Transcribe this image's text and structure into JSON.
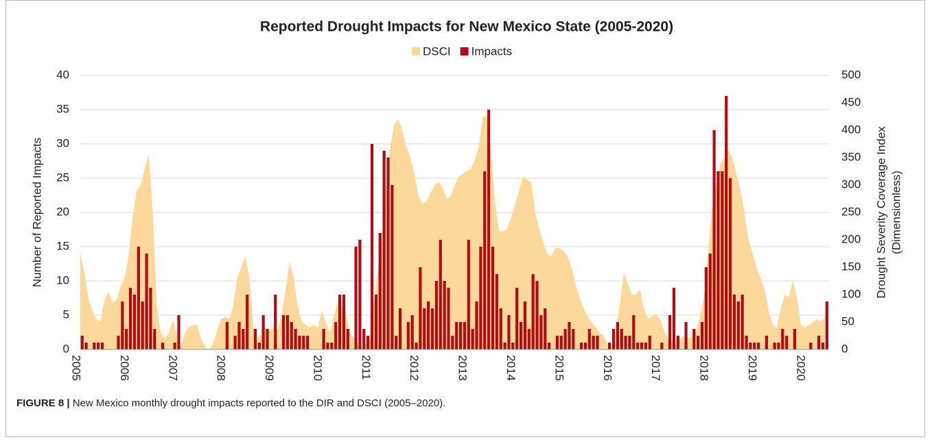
{
  "chart_data": {
    "type": "bar",
    "title": "Reported Drought Impacts for New Mexico State (2005-2020)",
    "y_label": "Number of Reported Impacts",
    "y2_label": [
      "Drought Severity Coverage Index",
      "(Dimensionless)"
    ],
    "legend": "top",
    "grid": true,
    "ylim": [
      0,
      40
    ],
    "yticks": [
      0,
      5,
      10,
      15,
      20,
      25,
      30,
      35,
      40
    ],
    "y2lim": [
      0,
      500
    ],
    "y2ticks": [
      0,
      50,
      100,
      150,
      200,
      250,
      300,
      350,
      400,
      450,
      500
    ],
    "categories": [
      "2005",
      null,
      null,
      null,
      null,
      null,
      null,
      null,
      null,
      null,
      null,
      null,
      "2006",
      null,
      null,
      null,
      null,
      null,
      null,
      null,
      null,
      null,
      null,
      null,
      "2007",
      null,
      null,
      null,
      null,
      null,
      null,
      null,
      null,
      null,
      null,
      null,
      "2008",
      null,
      null,
      null,
      null,
      null,
      null,
      null,
      null,
      null,
      null,
      null,
      "2009",
      null,
      null,
      null,
      null,
      null,
      null,
      null,
      null,
      null,
      null,
      null,
      "2010",
      null,
      null,
      null,
      null,
      null,
      null,
      null,
      null,
      null,
      null,
      null,
      "2011",
      null,
      null,
      null,
      null,
      null,
      null,
      null,
      null,
      null,
      null,
      null,
      "2012",
      null,
      null,
      null,
      null,
      null,
      null,
      null,
      null,
      null,
      null,
      null,
      "2013",
      null,
      null,
      null,
      null,
      null,
      null,
      null,
      null,
      null,
      null,
      null,
      "2014",
      null,
      null,
      null,
      null,
      null,
      null,
      null,
      null,
      null,
      null,
      null,
      "2015",
      null,
      null,
      null,
      null,
      null,
      null,
      null,
      null,
      null,
      null,
      null,
      "2016",
      null,
      null,
      null,
      null,
      null,
      null,
      null,
      null,
      null,
      null,
      null,
      "2017",
      null,
      null,
      null,
      null,
      null,
      null,
      null,
      null,
      null,
      null,
      null,
      "2018",
      null,
      null,
      null,
      null,
      null,
      null,
      null,
      null,
      null,
      null,
      null,
      "2019",
      null,
      null,
      null,
      null,
      null,
      null,
      null,
      null,
      null,
      null,
      null,
      "2020",
      null,
      null,
      null,
      null,
      null
    ],
    "series": [
      {
        "name": "DSCI",
        "type": "area",
        "axis": "y2",
        "color": "#fdd89a",
        "values": [
          175,
          140,
          95,
          70,
          55,
          50,
          90,
          105,
          85,
          90,
          115,
          130,
          170,
          240,
          290,
          300,
          330,
          355,
          250,
          80,
          30,
          20,
          30,
          55,
          25,
          5,
          30,
          40,
          45,
          45,
          20,
          5,
          0,
          10,
          35,
          55,
          60,
          55,
          80,
          130,
          150,
          170,
          130,
          40,
          20,
          30,
          40,
          35,
          40,
          35,
          60,
          110,
          160,
          130,
          80,
          50,
          45,
          40,
          45,
          40,
          70,
          50,
          30,
          60,
          90,
          80,
          70,
          30,
          20,
          10,
          5,
          10,
          20,
          90,
          150,
          210,
          300,
          370,
          410,
          420,
          400,
          370,
          350,
          320,
          280,
          265,
          270,
          285,
          300,
          305,
          295,
          275,
          280,
          300,
          315,
          320,
          325,
          330,
          345,
          370,
          425,
          425,
          360,
          270,
          215,
          215,
          220,
          240,
          265,
          290,
          315,
          310,
          305,
          250,
          220,
          195,
          175,
          170,
          185,
          185,
          180,
          170,
          150,
          120,
          95,
          75,
          60,
          50,
          40,
          30,
          25,
          10,
          5,
          30,
          80,
          140,
          120,
          100,
          100,
          110,
          75,
          55,
          60,
          65,
          55,
          35,
          20,
          15,
          10,
          20,
          25,
          20,
          25,
          35,
          60,
          100,
          180,
          260,
          300,
          340,
          350,
          365,
          350,
          320,
          290,
          250,
          200,
          175,
          150,
          130,
          110,
          70,
          45,
          40,
          75,
          100,
          95,
          125,
          95,
          45,
          40,
          45,
          50,
          55,
          50,
          60
        ]
      },
      {
        "name": "Impacts",
        "type": "bar",
        "axis": "y",
        "color": "#ad0e14",
        "values": [
          2,
          1,
          0,
          1,
          1,
          1,
          0,
          0,
          0,
          2,
          7,
          3,
          9,
          8,
          15,
          7,
          14,
          9,
          3,
          0,
          1,
          0,
          0,
          1,
          5,
          0,
          0,
          0,
          0,
          0,
          0,
          0,
          0,
          0,
          0,
          0,
          4,
          0,
          2,
          4,
          3,
          8,
          0,
          3,
          1,
          5,
          3,
          0,
          8,
          0,
          5,
          5,
          4,
          3,
          2,
          2,
          2,
          0,
          0,
          0,
          3,
          1,
          1,
          4,
          8,
          8,
          3,
          0,
          15,
          16,
          3,
          2,
          30,
          8,
          17,
          29,
          28,
          24,
          2,
          6,
          0,
          4,
          5,
          1,
          12,
          6,
          7,
          6,
          10,
          16,
          10,
          9,
          2,
          4,
          4,
          4,
          16,
          3,
          7,
          15,
          26,
          35,
          15,
          11,
          6,
          1,
          5,
          1,
          9,
          4,
          7,
          3,
          11,
          10,
          5,
          6,
          1,
          0,
          2,
          2,
          3,
          4,
          3,
          0,
          1,
          1,
          3,
          2,
          2,
          0,
          0,
          1,
          3,
          4,
          3,
          2,
          2,
          5,
          1,
          1,
          1,
          2,
          0,
          0,
          1,
          0,
          5,
          9,
          2,
          0,
          4,
          0,
          3,
          2,
          4,
          12,
          14,
          32,
          26,
          26,
          37,
          25,
          8,
          7,
          8,
          2,
          1,
          1,
          1,
          0,
          2,
          0,
          1,
          1,
          3,
          2,
          0,
          3,
          0,
          0,
          0,
          1,
          0,
          2,
          1,
          7
        ]
      }
    ]
  },
  "caption": {
    "label": "FIGURE 8 |",
    "text": "New Mexico monthly drought impacts reported to the DIR and DSCI (2005–2020)."
  }
}
